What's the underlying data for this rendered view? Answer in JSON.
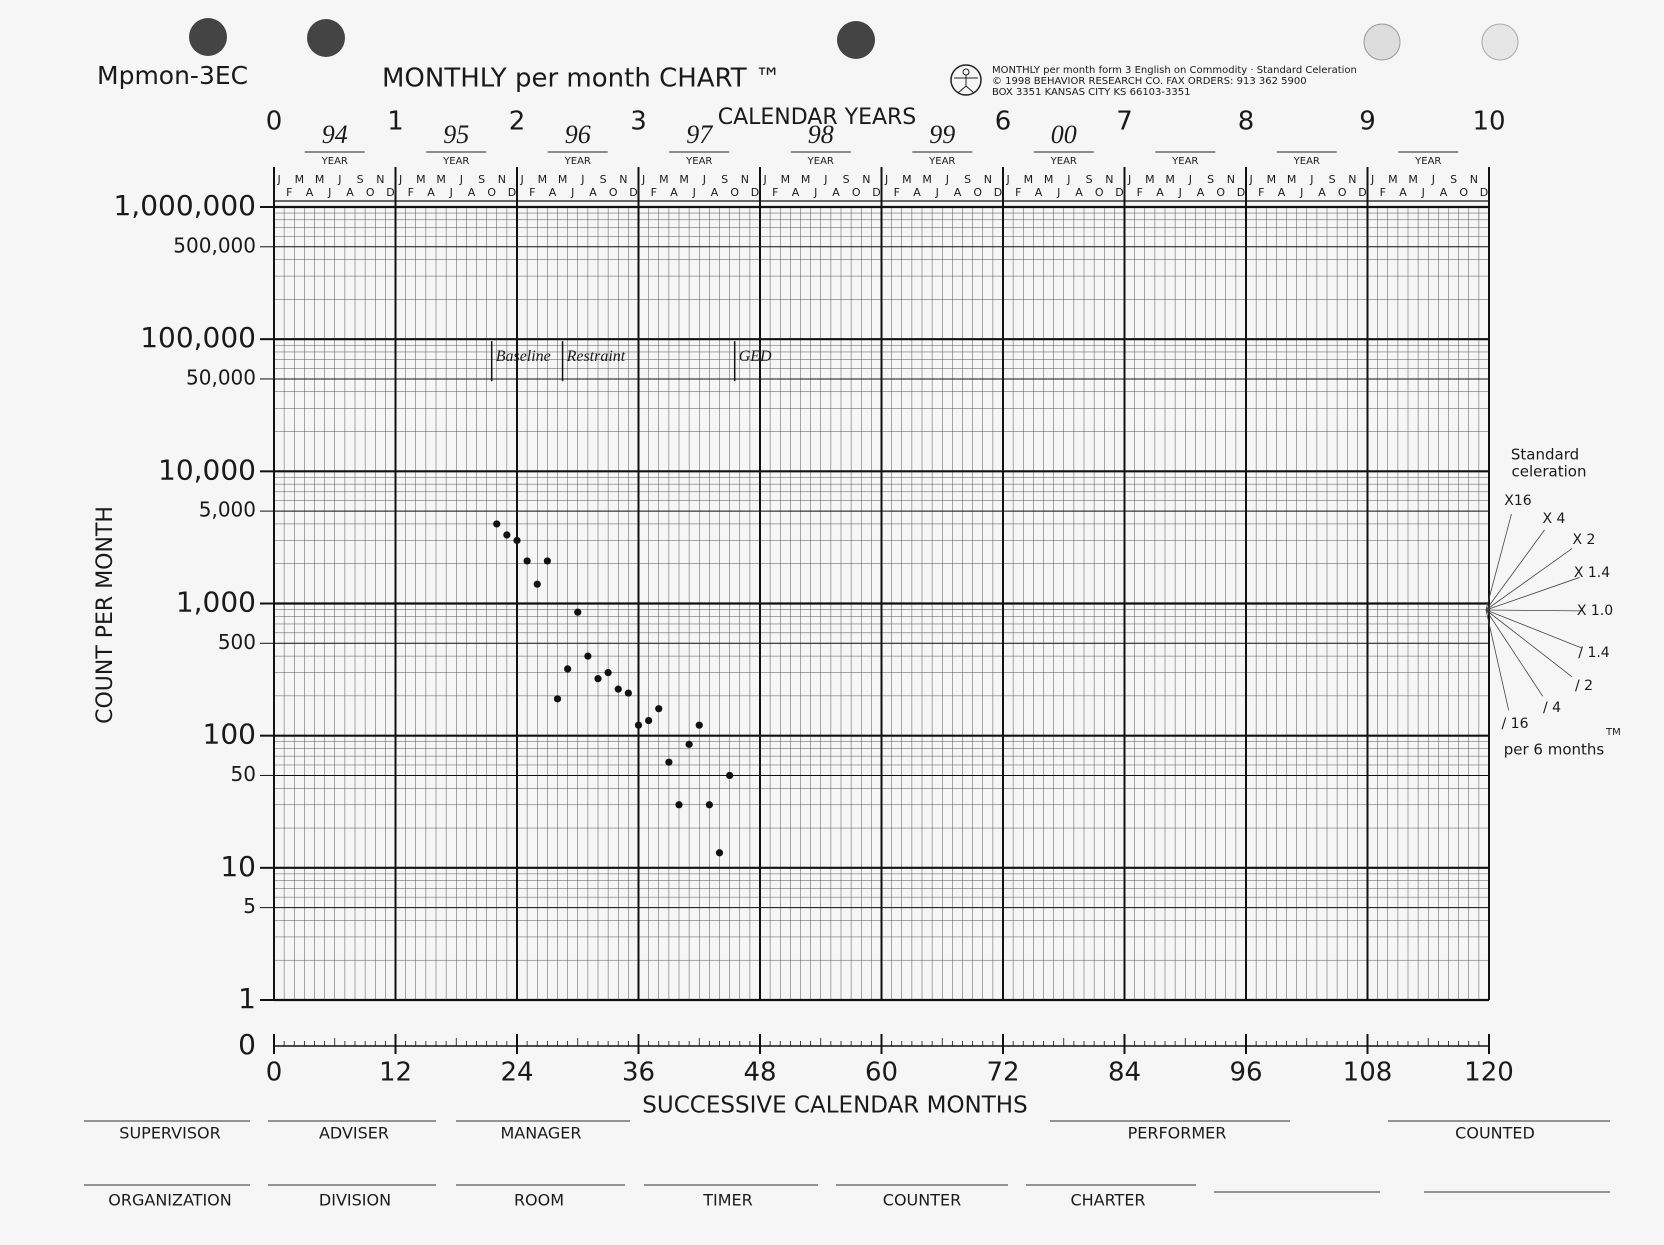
{
  "header": {
    "form_id": "Mpmon-3EC",
    "title": "MONTHLY per month CHART ™",
    "publisher_lines": [
      "MONTHLY per month form 3 English on Commodity · Standard Celeration",
      "© 1998 BEHAVIOR RESEARCH CO. FAX ORDERS: 913 362 5900",
      "BOX 3351  KANSAS CITY  KS  66103-3351"
    ]
  },
  "chart_data": {
    "type": "line",
    "y_scale": "log",
    "grid": true,
    "color": "#111111",
    "xlabel": "SUCCESSIVE CALENDAR MONTHS",
    "ylabel": "COUNT PER MONTH",
    "top_axis_label": "CALENDAR YEARS",
    "year_ticks": [
      0,
      1,
      2,
      3,
      6,
      7,
      8,
      9,
      10
    ],
    "year_entries": [
      "94",
      "95",
      "96",
      "97",
      "98",
      "99",
      "00",
      null,
      null,
      null
    ],
    "year_label": "YEAR",
    "month_letters": [
      "J",
      "F",
      "M",
      "A",
      "M",
      "J",
      "J",
      "A",
      "S",
      "O",
      "N",
      "D"
    ],
    "xlim": [
      0,
      120
    ],
    "xticks": [
      0,
      12,
      24,
      36,
      48,
      60,
      72,
      84,
      96,
      108,
      120
    ],
    "ylim": [
      1,
      1000000
    ],
    "yticks": [
      1,
      5,
      10,
      50,
      100,
      500,
      {
        "value": 1000,
        "label": "1,000"
      },
      {
        "value": 5000,
        "label": "5,000"
      },
      {
        "value": 10000,
        "label": "10,000"
      },
      {
        "value": 50000,
        "label": "50,000"
      },
      {
        "value": 100000,
        "label": "100,000"
      },
      {
        "value": 500000,
        "label": "500,000"
      },
      {
        "value": 1000000,
        "label": "1,000,000"
      }
    ],
    "zero_row": 0,
    "phases": [
      {
        "label": "Baseline",
        "x": 21.5
      },
      {
        "label": "Restraint",
        "x": 28.5
      },
      {
        "label": "GED",
        "x": 45.5
      }
    ],
    "x": [
      22,
      23,
      24,
      25,
      26,
      27,
      28,
      29,
      30,
      31,
      32,
      33,
      34,
      35,
      36,
      37,
      38,
      39,
      40,
      41,
      42,
      43,
      44,
      45
    ],
    "values": [
      4000,
      3300,
      3000,
      2100,
      1400,
      2100,
      190,
      320,
      860,
      400,
      270,
      300,
      225,
      210,
      120,
      130,
      160,
      63,
      30,
      86,
      120,
      30,
      13,
      50
    ],
    "celeration_title": [
      "Standard",
      "celeration"
    ],
    "celeration_labels": [
      "X16",
      "X 4",
      "X 2",
      "X 1.4",
      "X 1.0",
      "/ 1.4",
      "/ 2",
      "/ 4",
      "/ 16"
    ],
    "celeration_mark": "TM",
    "celeration_unit": "per 6 months"
  },
  "footer": {
    "row1": [
      "SUPERVISOR",
      "ADVISER",
      "MANAGER",
      "PERFORMER",
      "COUNTED"
    ],
    "row2": [
      "ORGANIZATION",
      "DIVISION",
      "ROOM",
      "TIMER",
      "COUNTER",
      "CHARTER"
    ]
  }
}
